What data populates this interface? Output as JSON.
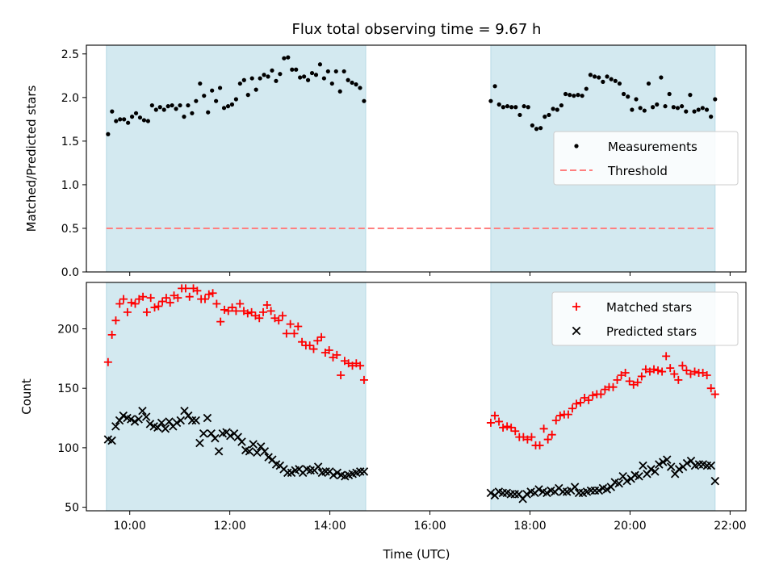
{
  "figure": {
    "title": "Flux total observing time = 9.67 h",
    "xlabel": "Time (UTC)",
    "x_ticks": [
      "10:00",
      "12:00",
      "14:00",
      "16:00",
      "18:00",
      "20:00",
      "22:00"
    ]
  },
  "colors": {
    "shade": "#d3e9f0",
    "shade_edge": "#b7d9e5",
    "measurements": "#000000",
    "threshold": "#ff7f7f",
    "matched": "#ff0000",
    "predicted": "#000000"
  },
  "chart_data": [
    {
      "type": "scatter",
      "panel": "top",
      "ylabel": "Matched/Predicted stars",
      "xlim": [
        "09:08",
        "22:19"
      ],
      "ylim": [
        0,
        2.6
      ],
      "y_ticks": [
        "0.0",
        "0.5",
        "1.0",
        "1.5",
        "2.0",
        "2.5"
      ],
      "shaded_intervals": [
        [
          "09:32",
          "14:43"
        ],
        [
          "17:13",
          "21:42"
        ]
      ],
      "threshold": {
        "y": 0.5,
        "x_range": [
          "09:32",
          "21:42"
        ]
      },
      "legend": {
        "position": "center-right",
        "entries": [
          "Measurements",
          "Threshold"
        ]
      },
      "series": [
        {
          "name": "Measurements",
          "segments": [
            {
              "start": "09:34",
              "end": "14:41",
              "values": [
                1.58,
                1.84,
                1.73,
                1.75,
                1.75,
                1.71,
                1.78,
                1.82,
                1.77,
                1.74,
                1.73,
                1.91,
                1.86,
                1.89,
                1.86,
                1.9,
                1.91,
                1.87,
                1.91,
                1.78,
                1.91,
                1.82,
                1.96,
                2.16,
                2.02,
                1.83,
                2.08,
                1.96,
                2.11,
                1.88,
                1.9,
                1.92,
                1.98,
                2.16,
                2.2,
                2.03,
                2.22,
                2.09,
                2.22,
                2.26,
                2.24,
                2.31,
                2.19,
                2.27,
                2.45,
                2.46,
                2.32,
                2.32,
                2.23,
                2.24,
                2.2,
                2.28,
                2.26,
                2.38,
                2.22,
                2.3,
                2.16,
                2.3,
                2.07,
                2.3,
                2.2,
                2.17,
                2.15,
                2.11,
                1.96
              ]
            },
            {
              "start": "17:13",
              "end": "21:42",
              "values": [
                1.96,
                2.13,
                1.92,
                1.89,
                1.9,
                1.89,
                1.89,
                1.8,
                1.9,
                1.89,
                1.68,
                1.64,
                1.65,
                1.78,
                1.8,
                1.87,
                1.86,
                1.91,
                2.04,
                2.03,
                2.02,
                2.03,
                2.02,
                2.1,
                2.26,
                2.24,
                2.23,
                2.18,
                2.24,
                2.21,
                2.19,
                2.16,
                2.04,
                2.01,
                1.86,
                1.98,
                1.88,
                1.85,
                2.16,
                1.89,
                1.92,
                2.23,
                1.9,
                2.04,
                1.89,
                1.88,
                1.9,
                1.84,
                2.03,
                1.84,
                1.86,
                1.88,
                1.86,
                1.78,
                1.98
              ]
            }
          ]
        },
        {
          "name": "Threshold",
          "type": "line",
          "style": "dashed"
        }
      ]
    },
    {
      "type": "scatter",
      "panel": "bottom",
      "ylabel": "Count",
      "xlim": [
        "09:08",
        "22:19"
      ],
      "ylim": [
        47,
        239
      ],
      "y_ticks": [
        "50",
        "100",
        "150",
        "200"
      ],
      "shaded_intervals": [
        [
          "09:32",
          "14:43"
        ],
        [
          "17:13",
          "21:42"
        ]
      ],
      "legend": {
        "position": "top-right",
        "entries": [
          "Matched stars",
          "Predicted stars"
        ]
      },
      "series": [
        {
          "name": "Matched stars",
          "marker": "plus",
          "segments": [
            {
              "start": "09:34",
              "end": "14:41",
              "values": [
                172,
                195,
                207,
                221,
                225,
                214,
                222,
                221,
                225,
                227,
                214,
                226,
                218,
                219,
                223,
                226,
                222,
                228,
                226,
                234,
                234,
                227,
                234,
                232,
                225,
                225,
                229,
                230,
                221,
                206,
                216,
                215,
                218,
                215,
                221,
                215,
                213,
                214,
                211,
                209,
                214,
                220,
                215,
                209,
                207,
                211,
                196,
                204,
                196,
                202,
                189,
                186,
                186,
                183,
                190,
                193,
                180,
                182,
                176,
                178,
                161,
                173,
                171,
                169,
                171,
                169,
                157
              ]
            },
            {
              "start": "17:13",
              "end": "21:42",
              "values": [
                121,
                127,
                122,
                117,
                118,
                117,
                114,
                109,
                109,
                107,
                109,
                102,
                102,
                116,
                107,
                111,
                123,
                127,
                128,
                128,
                133,
                137,
                138,
                142,
                140,
                144,
                145,
                145,
                149,
                151,
                151,
                157,
                161,
                163,
                156,
                153,
                155,
                160,
                166,
                164,
                166,
                165,
                164,
                177,
                167,
                162,
                157,
                169,
                165,
                162,
                164,
                163,
                163,
                161,
                150,
                145
              ]
            }
          ]
        },
        {
          "name": "Predicted stars",
          "marker": "x",
          "segments": [
            {
              "start": "09:34",
              "end": "14:41",
              "values": [
                107,
                106,
                118,
                123,
                127,
                125,
                124,
                122,
                124,
                131,
                126,
                120,
                118,
                117,
                121,
                116,
                122,
                118,
                121,
                123,
                131,
                127,
                123,
                123,
                104,
                112,
                125,
                112,
                108,
                97,
                112,
                113,
                110,
                112,
                109,
                105,
                98,
                97,
                103,
                96,
                101,
                97,
                92,
                90,
                86,
                85,
                82,
                79,
                79,
                81,
                82,
                79,
                82,
                81,
                81,
                84,
                79,
                80,
                80,
                77,
                79,
                77,
                76,
                77,
                78,
                79,
                80,
                80
              ]
            },
            {
              "start": "17:13",
              "end": "21:42",
              "values": [
                62,
                60,
                63,
                62,
                62,
                61,
                61,
                61,
                57,
                61,
                63,
                62,
                65,
                63,
                62,
                64,
                63,
                66,
                63,
                63,
                64,
                67,
                62,
                62,
                63,
                64,
                64,
                64,
                66,
                65,
                67,
                71,
                70,
                76,
                72,
                74,
                77,
                76,
                85,
                78,
                82,
                80,
                86,
                88,
                90,
                84,
                78,
                82,
                84,
                87,
                89,
                85,
                86,
                86,
                85,
                85,
                72
              ]
            }
          ]
        }
      ]
    }
  ]
}
